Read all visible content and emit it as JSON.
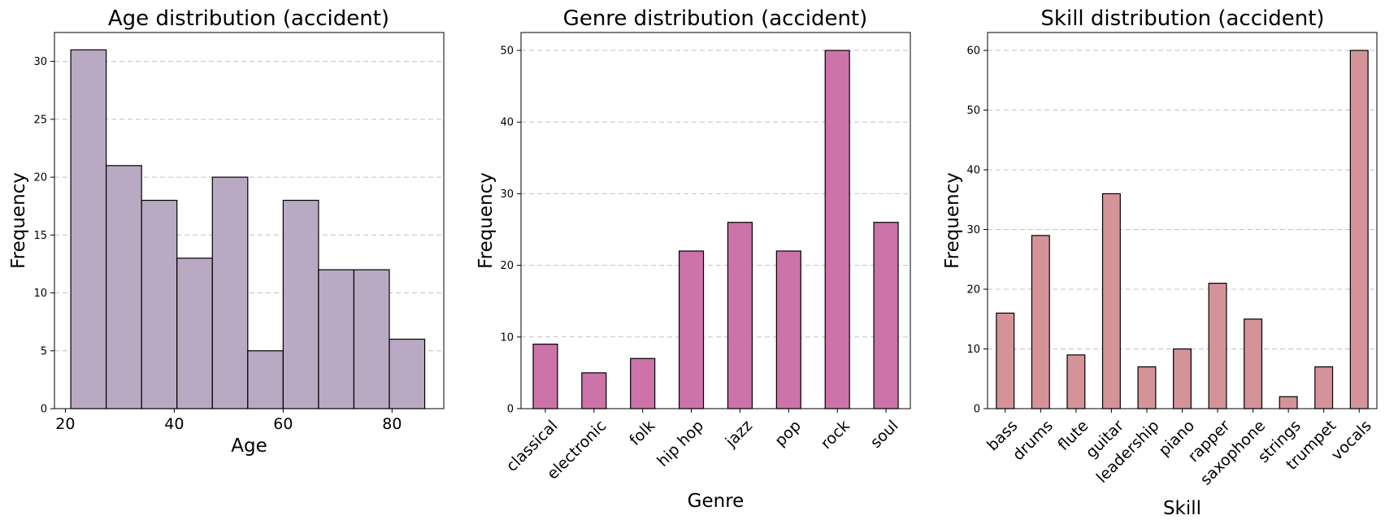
{
  "chart_data": [
    {
      "id": "age",
      "type": "bar",
      "title": "Age distribution (accident)",
      "xlabel": "Age",
      "ylabel": "Frequency",
      "histogram": true,
      "bin_edges": [
        21,
        27.5,
        34,
        40.5,
        47,
        53.5,
        60,
        66.5,
        73,
        79.5,
        86
      ],
      "values": [
        31,
        21,
        18,
        13,
        20,
        5,
        18,
        12,
        12,
        6
      ],
      "xlim": [
        18,
        89.5
      ],
      "ylim": [
        0,
        32.5
      ],
      "xticks": [
        20,
        40,
        60,
        80
      ],
      "yticks": [
        0,
        5,
        10,
        15,
        20,
        25,
        30
      ],
      "color": "#b9a9c2",
      "grid": true
    },
    {
      "id": "genre",
      "type": "bar",
      "title": "Genre distribution (accident)",
      "xlabel": "Genre",
      "ylabel": "Frequency",
      "categories": [
        "classical",
        "electronic",
        "folk",
        "hip hop",
        "jazz",
        "pop",
        "rock",
        "soul"
      ],
      "values": [
        9,
        5,
        7,
        22,
        26,
        22,
        50,
        26
      ],
      "ylim": [
        0,
        52.5
      ],
      "yticks": [
        0,
        10,
        20,
        30,
        40,
        50
      ],
      "color": "#cc73aa",
      "grid": true
    },
    {
      "id": "skill",
      "type": "bar",
      "title": "Skill distribution (accident)",
      "xlabel": "Skill",
      "ylabel": "Frequency",
      "categories": [
        "bass",
        "drums",
        "flute",
        "guitar",
        "leadership",
        "piano",
        "rapper",
        "saxophone",
        "strings",
        "trumpet",
        "vocals"
      ],
      "values": [
        16,
        29,
        9,
        36,
        7,
        10,
        21,
        15,
        2,
        7,
        60
      ],
      "ylim": [
        0,
        63
      ],
      "yticks": [
        0,
        10,
        20,
        30,
        40,
        50,
        60
      ],
      "color": "#d49399",
      "grid": true
    }
  ]
}
